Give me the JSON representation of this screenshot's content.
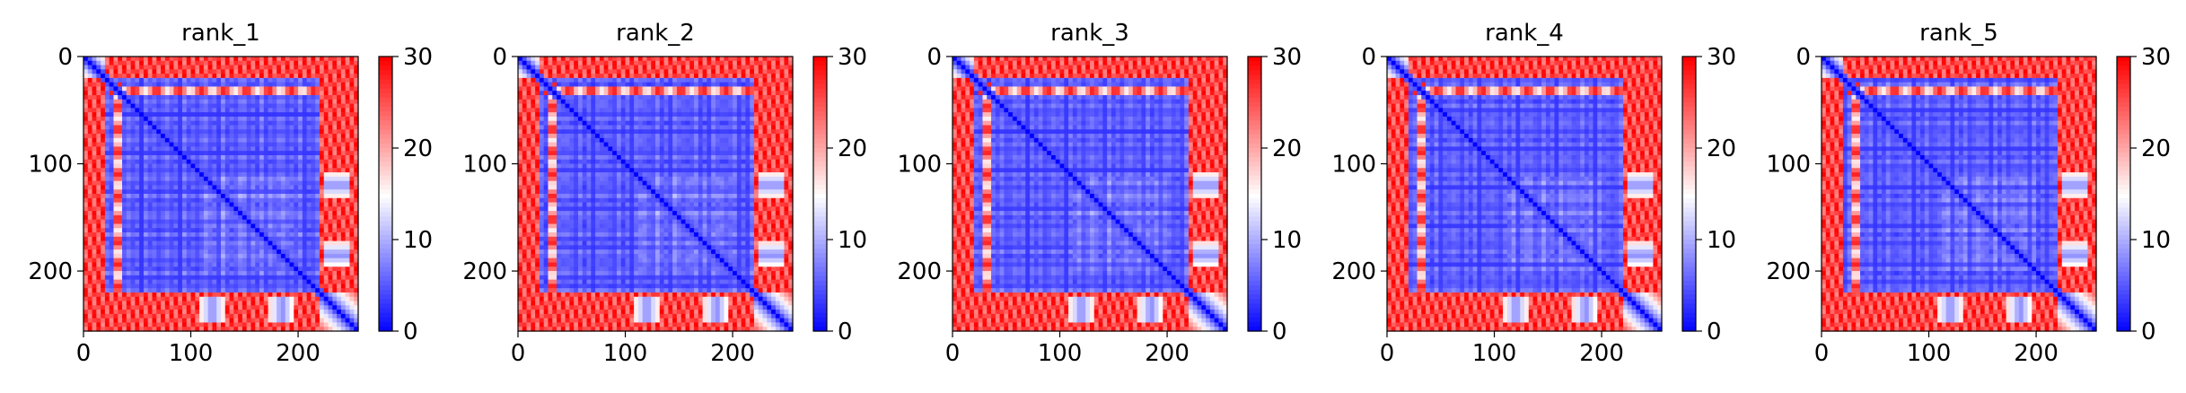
{
  "figure": {
    "colormap": {
      "name": "bwr",
      "low": "#0000ff",
      "mid": "#ffffff",
      "high": "#ff0000"
    },
    "text_color": "#000000",
    "background": "#ffffff"
  },
  "chart_data": [
    {
      "type": "heatmap",
      "title": "rank_1",
      "xlabel": "",
      "ylabel": "",
      "xlim": [
        0,
        256
      ],
      "ylim": [
        256,
        0
      ],
      "x_ticks": [
        0,
        100,
        200
      ],
      "y_ticks": [
        0,
        100,
        200
      ],
      "colorbar": {
        "vmin": 0,
        "vmax": 30,
        "ticks": [
          0,
          10,
          20,
          30
        ]
      },
      "grid": false,
      "description_values": {
        "matrix_size": 256,
        "low_region": [
          22,
          218
        ],
        "domain_boundary": 218,
        "lower_domain_blobs_x": [
          120,
          185
        ]
      }
    },
    {
      "type": "heatmap",
      "title": "rank_2",
      "xlabel": "",
      "ylabel": "",
      "xlim": [
        0,
        256
      ],
      "ylim": [
        256,
        0
      ],
      "x_ticks": [
        0,
        100,
        200
      ],
      "y_ticks": [
        0,
        100,
        200
      ],
      "colorbar": {
        "vmin": 0,
        "vmax": 30,
        "ticks": [
          0,
          10,
          20,
          30
        ]
      },
      "grid": false,
      "description_values": {
        "matrix_size": 256,
        "low_region": [
          22,
          218
        ],
        "domain_boundary": 218,
        "lower_domain_blobs_x": [
          120,
          185
        ]
      }
    },
    {
      "type": "heatmap",
      "title": "rank_3",
      "xlabel": "",
      "ylabel": "",
      "xlim": [
        0,
        256
      ],
      "ylim": [
        256,
        0
      ],
      "x_ticks": [
        0,
        100,
        200
      ],
      "y_ticks": [
        0,
        100,
        200
      ],
      "colorbar": {
        "vmin": 0,
        "vmax": 30,
        "ticks": [
          0,
          10,
          20,
          30
        ]
      },
      "grid": false,
      "description_values": {
        "matrix_size": 256,
        "low_region": [
          22,
          218
        ],
        "domain_boundary": 218,
        "lower_domain_blobs_x": [
          120,
          185
        ]
      }
    },
    {
      "type": "heatmap",
      "title": "rank_4",
      "xlabel": "",
      "ylabel": "",
      "xlim": [
        0,
        256
      ],
      "ylim": [
        256,
        0
      ],
      "x_ticks": [
        0,
        100,
        200
      ],
      "y_ticks": [
        0,
        100,
        200
      ],
      "colorbar": {
        "vmin": 0,
        "vmax": 30,
        "ticks": [
          0,
          10,
          20,
          30
        ]
      },
      "grid": false,
      "description_values": {
        "matrix_size": 256,
        "low_region": [
          22,
          218
        ],
        "domain_boundary": 218,
        "lower_domain_blobs_x": [
          120,
          185
        ]
      }
    },
    {
      "type": "heatmap",
      "title": "rank_5",
      "xlabel": "",
      "ylabel": "",
      "xlim": [
        0,
        256
      ],
      "ylim": [
        256,
        0
      ],
      "x_ticks": [
        0,
        100,
        200
      ],
      "y_ticks": [
        0,
        100,
        200
      ],
      "colorbar": {
        "vmin": 0,
        "vmax": 30,
        "ticks": [
          0,
          10,
          20,
          30
        ]
      },
      "grid": false,
      "description_values": {
        "matrix_size": 256,
        "low_region": [
          22,
          218
        ],
        "domain_boundary": 218,
        "lower_domain_blobs_x": [
          120,
          185
        ]
      }
    }
  ]
}
